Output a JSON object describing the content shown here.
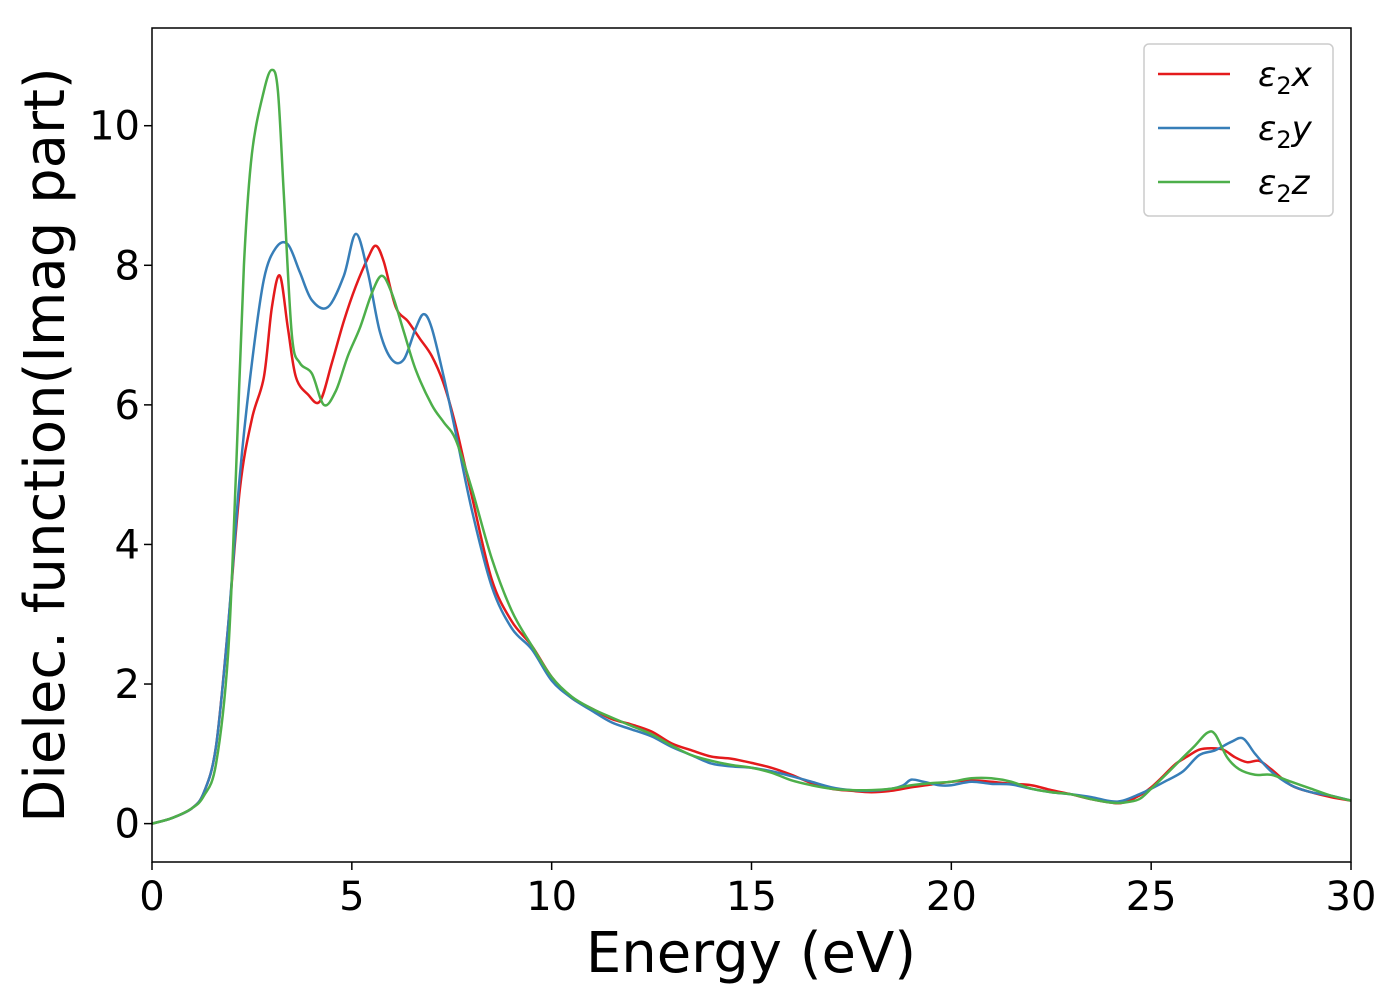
{
  "chart_data": {
    "type": "line",
    "title": "",
    "xlabel": "Energy (eV)",
    "ylabel": "Dielec. function(Imag part)",
    "xlim": [
      0,
      30
    ],
    "ylim": [
      -0.55,
      11.4
    ],
    "xticks": [
      0,
      5,
      10,
      15,
      20,
      25,
      30
    ],
    "yticks": [
      0,
      2,
      4,
      6,
      8,
      10
    ],
    "xtick_labels": [
      "0",
      "5",
      "10",
      "15",
      "20",
      "25",
      "30"
    ],
    "ytick_labels": [
      "0",
      "2",
      "4",
      "6",
      "8",
      "10"
    ],
    "grid": false,
    "legend_position": "top-right",
    "series": [
      {
        "name": "x",
        "legend_symbol": "ε",
        "legend_sub": "2",
        "color": "#e41a1c",
        "x": [
          0,
          0.5,
          1.0,
          1.3,
          1.6,
          1.9,
          2.2,
          2.5,
          2.8,
          3.0,
          3.2,
          3.4,
          3.6,
          3.9,
          4.2,
          4.5,
          4.8,
          5.1,
          5.4,
          5.6,
          5.8,
          6.1,
          6.4,
          6.7,
          7.0,
          7.3,
          7.6,
          8.0,
          8.5,
          9.0,
          9.5,
          10.0,
          10.5,
          11,
          11.5,
          12,
          12.5,
          13,
          13.5,
          14,
          14.5,
          15,
          15.5,
          16,
          16.5,
          17,
          17.5,
          18,
          18.5,
          19,
          19.5,
          20,
          20.5,
          21,
          21.5,
          22,
          22.5,
          23,
          23.5,
          24,
          24.3,
          24.7,
          25,
          25.3,
          25.6,
          25.9,
          26.2,
          26.5,
          26.8,
          27.1,
          27.4,
          27.7,
          28,
          28.5,
          29,
          29.5,
          30
        ],
        "y": [
          0.0,
          0.08,
          0.22,
          0.45,
          1.1,
          2.8,
          4.8,
          5.8,
          6.4,
          7.4,
          7.85,
          7.1,
          6.4,
          6.15,
          6.05,
          6.6,
          7.2,
          7.7,
          8.1,
          8.28,
          8.05,
          7.4,
          7.2,
          6.95,
          6.7,
          6.3,
          5.7,
          4.7,
          3.5,
          2.9,
          2.55,
          2.1,
          1.8,
          1.65,
          1.5,
          1.42,
          1.32,
          1.15,
          1.05,
          0.96,
          0.93,
          0.87,
          0.8,
          0.7,
          0.58,
          0.5,
          0.47,
          0.45,
          0.47,
          0.52,
          0.56,
          0.6,
          0.62,
          0.6,
          0.57,
          0.55,
          0.48,
          0.42,
          0.35,
          0.3,
          0.3,
          0.4,
          0.52,
          0.68,
          0.85,
          0.96,
          1.06,
          1.08,
          1.06,
          0.95,
          0.88,
          0.9,
          0.78,
          0.55,
          0.45,
          0.38,
          0.33
        ]
      },
      {
        "name": "y",
        "legend_symbol": "ε",
        "legend_sub": "2",
        "color": "#377eb8",
        "x": [
          0,
          0.5,
          1.0,
          1.3,
          1.6,
          1.9,
          2.2,
          2.5,
          2.8,
          3.1,
          3.4,
          3.7,
          4.0,
          4.4,
          4.8,
          5.1,
          5.4,
          5.7,
          6.0,
          6.3,
          6.6,
          6.8,
          7.0,
          7.3,
          7.6,
          8.0,
          8.5,
          9.0,
          9.5,
          10.0,
          10.5,
          11,
          11.5,
          12,
          12.5,
          13,
          13.5,
          14,
          14.5,
          15,
          15.5,
          16,
          16.5,
          17,
          17.5,
          18,
          18.5,
          18.8,
          19.0,
          19.3,
          19.7,
          20,
          20.5,
          21,
          21.5,
          22,
          22.5,
          23,
          23.5,
          24,
          24.3,
          24.7,
          25,
          25.4,
          25.8,
          26.2,
          26.6,
          27.0,
          27.3,
          27.6,
          28,
          28.5,
          29,
          29.5,
          30
        ],
        "y": [
          0.0,
          0.08,
          0.22,
          0.45,
          1.1,
          2.8,
          5.0,
          6.6,
          7.8,
          8.25,
          8.3,
          7.9,
          7.5,
          7.4,
          7.85,
          8.45,
          7.9,
          7.05,
          6.65,
          6.65,
          7.1,
          7.3,
          7.1,
          6.4,
          5.6,
          4.5,
          3.4,
          2.8,
          2.5,
          2.05,
          1.8,
          1.62,
          1.45,
          1.35,
          1.25,
          1.1,
          0.98,
          0.86,
          0.82,
          0.8,
          0.75,
          0.68,
          0.6,
          0.52,
          0.48,
          0.47,
          0.5,
          0.55,
          0.63,
          0.6,
          0.55,
          0.55,
          0.6,
          0.57,
          0.56,
          0.5,
          0.45,
          0.42,
          0.38,
          0.32,
          0.33,
          0.42,
          0.5,
          0.62,
          0.75,
          0.98,
          1.05,
          1.17,
          1.22,
          1.0,
          0.75,
          0.55,
          0.45,
          0.4,
          0.33
        ]
      },
      {
        "name": "z",
        "legend_symbol": "ε",
        "legend_sub": "2",
        "color": "#4daf4a",
        "x": [
          0,
          0.5,
          1.0,
          1.3,
          1.6,
          1.9,
          2.1,
          2.3,
          2.5,
          2.8,
          3.0,
          3.15,
          3.3,
          3.5,
          3.7,
          4.0,
          4.3,
          4.6,
          4.9,
          5.2,
          5.5,
          5.75,
          6.0,
          6.3,
          6.6,
          7.0,
          7.3,
          7.6,
          8.0,
          8.5,
          9.0,
          9.5,
          10.0,
          10.5,
          11,
          11.5,
          12,
          12.5,
          13,
          13.5,
          14,
          14.5,
          15,
          15.5,
          16,
          16.5,
          17,
          17.5,
          18,
          18.5,
          19,
          19.5,
          20,
          20.5,
          21,
          21.5,
          22,
          22.5,
          23,
          23.5,
          24,
          24.3,
          24.7,
          25,
          25.4,
          25.8,
          26.1,
          26.4,
          26.6,
          26.9,
          27.2,
          27.6,
          28,
          28.5,
          29,
          29.5,
          30
        ],
        "y": [
          0.0,
          0.08,
          0.22,
          0.4,
          0.85,
          2.4,
          5.0,
          8.0,
          9.6,
          10.5,
          10.8,
          10.5,
          9.0,
          7.0,
          6.6,
          6.45,
          6.0,
          6.2,
          6.7,
          7.1,
          7.6,
          7.85,
          7.6,
          7.05,
          6.5,
          6.0,
          5.75,
          5.5,
          4.8,
          3.8,
          3.05,
          2.55,
          2.1,
          1.82,
          1.65,
          1.52,
          1.4,
          1.28,
          1.12,
          0.98,
          0.9,
          0.84,
          0.8,
          0.73,
          0.62,
          0.55,
          0.5,
          0.48,
          0.48,
          0.5,
          0.55,
          0.58,
          0.6,
          0.65,
          0.65,
          0.6,
          0.5,
          0.45,
          0.42,
          0.35,
          0.3,
          0.3,
          0.35,
          0.5,
          0.72,
          0.95,
          1.12,
          1.3,
          1.28,
          0.95,
          0.78,
          0.7,
          0.7,
          0.6,
          0.5,
          0.4,
          0.33
        ]
      }
    ]
  }
}
